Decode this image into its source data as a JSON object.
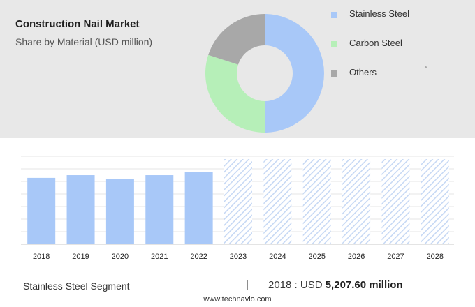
{
  "chart_data": [
    {
      "type": "pie",
      "title": "Construction Nail Market",
      "subtitle": "Share by Material (USD million)",
      "donut": true,
      "legend_position": "right",
      "slices": [
        {
          "name": "Stainless Steel",
          "value": 50,
          "color": "#a8c8f8"
        },
        {
          "name": "Carbon Steel",
          "value": 30,
          "color": "#b6efb8"
        },
        {
          "name": "Others",
          "value": 20,
          "color": "#a8a8a8"
        }
      ]
    },
    {
      "type": "bar",
      "categories": [
        "2018",
        "2019",
        "2020",
        "2021",
        "2022",
        "2023",
        "2024",
        "2025",
        "2026",
        "2027",
        "2028"
      ],
      "values": [
        5207.6,
        5420,
        5140,
        5420,
        5640,
        null,
        null,
        null,
        null,
        null,
        null
      ],
      "forecast_categories": [
        "2023",
        "2024",
        "2025",
        "2026",
        "2027",
        "2028"
      ],
      "ylim": [
        0,
        6900
      ],
      "grid": true,
      "color": "#a8c8f8",
      "forecast_color": "#c6d8f4"
    }
  ],
  "footer": {
    "segment": "Stainless Steel Segment",
    "divider": "|",
    "year_label": "2018 : USD ",
    "value_text": "5,207.60 million",
    "source": "www.technavio.com"
  }
}
